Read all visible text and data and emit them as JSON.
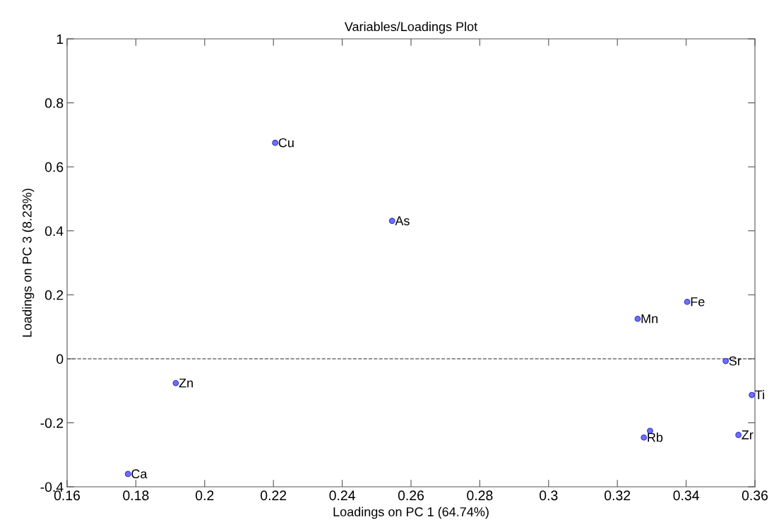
{
  "chart_data": {
    "type": "scatter",
    "title": "Variables/Loadings Plot",
    "xlabel": "Loadings on PC 1 (64.74%)",
    "ylabel": "Loadings on PC 3 (8.23%)",
    "x": [
      0.2205,
      0.2545,
      0.3403,
      0.3259,
      0.3515,
      0.3591,
      0.3552,
      0.3277,
      0.3295,
      0.1916,
      0.1777
    ],
    "values": [
      0.675,
      0.431,
      0.178,
      0.125,
      -0.007,
      -0.113,
      -0.238,
      -0.246,
      -0.225,
      -0.076,
      -0.36
    ],
    "color": "#6e6eff",
    "marker": "circle",
    "annotations": [
      {
        "text": "Cu",
        "x": 0.2205,
        "y": 0.675
      },
      {
        "text": "As",
        "x": 0.2545,
        "y": 0.431
      },
      {
        "text": "Fe",
        "x": 0.3403,
        "y": 0.178
      },
      {
        "text": "Mn",
        "x": 0.3259,
        "y": 0.125
      },
      {
        "text": "Sr",
        "x": 0.3515,
        "y": -0.007
      },
      {
        "text": "Ti",
        "x": 0.3591,
        "y": -0.113
      },
      {
        "text": "Zr",
        "x": 0.3552,
        "y": -0.238
      },
      {
        "text": "Rb",
        "x": 0.3277,
        "y": -0.246
      },
      {
        "text": "Zn",
        "x": 0.1916,
        "y": -0.076
      },
      {
        "text": "Ca",
        "x": 0.1777,
        "y": -0.36
      }
    ],
    "ref_lines": [
      {
        "axis": "y",
        "value": 0,
        "color": "#555555",
        "line_style": "dashed"
      }
    ],
    "xlim": [
      0.16,
      0.36
    ],
    "ylim": [
      -0.4,
      1
    ],
    "xticks": [
      0.16,
      0.18,
      0.2,
      0.22,
      0.24,
      0.26,
      0.28,
      0.3,
      0.32,
      0.34,
      0.36
    ],
    "yticks": [
      -0.4,
      -0.2,
      0,
      0.2,
      0.4,
      0.6,
      0.8,
      1
    ],
    "grid": false,
    "legend": false
  }
}
